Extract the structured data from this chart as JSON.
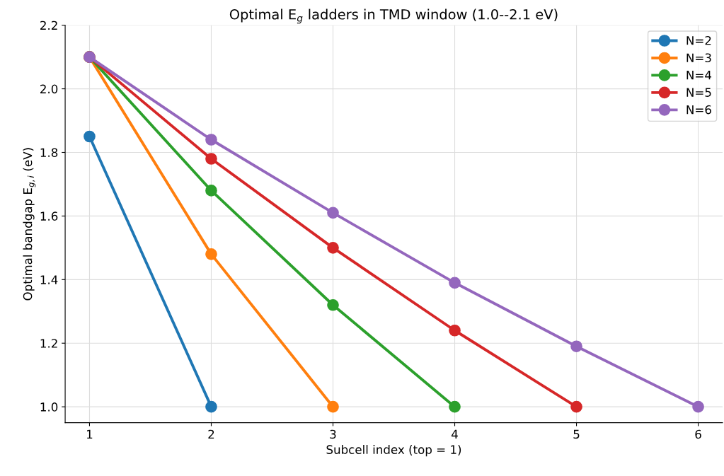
{
  "chart_data": {
    "type": "line",
    "title": "Optimal E$_{g}$ ladders in TMD window (1.0--2.1 eV)",
    "xlabel": "Subcell index (top = 1)",
    "ylabel": "Optimal bandgap E$_{g,i}$ (eV)",
    "series": [
      {
        "name": "N=2",
        "color": "#1f77b4",
        "x": [
          1,
          2
        ],
        "values": [
          1.85,
          1.0
        ]
      },
      {
        "name": "N=3",
        "color": "#ff7f0e",
        "x": [
          1,
          2,
          3
        ],
        "values": [
          2.1,
          1.48,
          1.0
        ]
      },
      {
        "name": "N=4",
        "color": "#2ca02c",
        "x": [
          1,
          2,
          3,
          4
        ],
        "values": [
          2.1,
          1.68,
          1.32,
          1.0
        ]
      },
      {
        "name": "N=5",
        "color": "#d62728",
        "x": [
          1,
          2,
          3,
          4,
          5
        ],
        "values": [
          2.1,
          1.78,
          1.5,
          1.24,
          1.0
        ]
      },
      {
        "name": "N=6",
        "color": "#9467bd",
        "x": [
          1,
          2,
          3,
          4,
          5,
          6
        ],
        "values": [
          2.1,
          1.84,
          1.61,
          1.39,
          1.19,
          1.0
        ]
      }
    ],
    "xlim": [
      0.8,
      6.2
    ],
    "xticks": [
      1,
      2,
      3,
      4,
      5,
      6
    ],
    "ylim": [
      0.95,
      2.2
    ],
    "yticks": [
      {
        "value": 1.0,
        "label": "1.0"
      },
      {
        "value": 1.2,
        "label": "1.2"
      },
      {
        "value": 1.4,
        "label": "1.4"
      },
      {
        "value": 1.6,
        "label": "1.6"
      },
      {
        "value": 1.8,
        "label": "1.8"
      },
      {
        "value": 2.0,
        "label": "2.0"
      },
      {
        "value": 2.2,
        "label": "2.2"
      }
    ],
    "grid": true,
    "legend": "top right",
    "marker": "circle",
    "line_style": "solid"
  }
}
